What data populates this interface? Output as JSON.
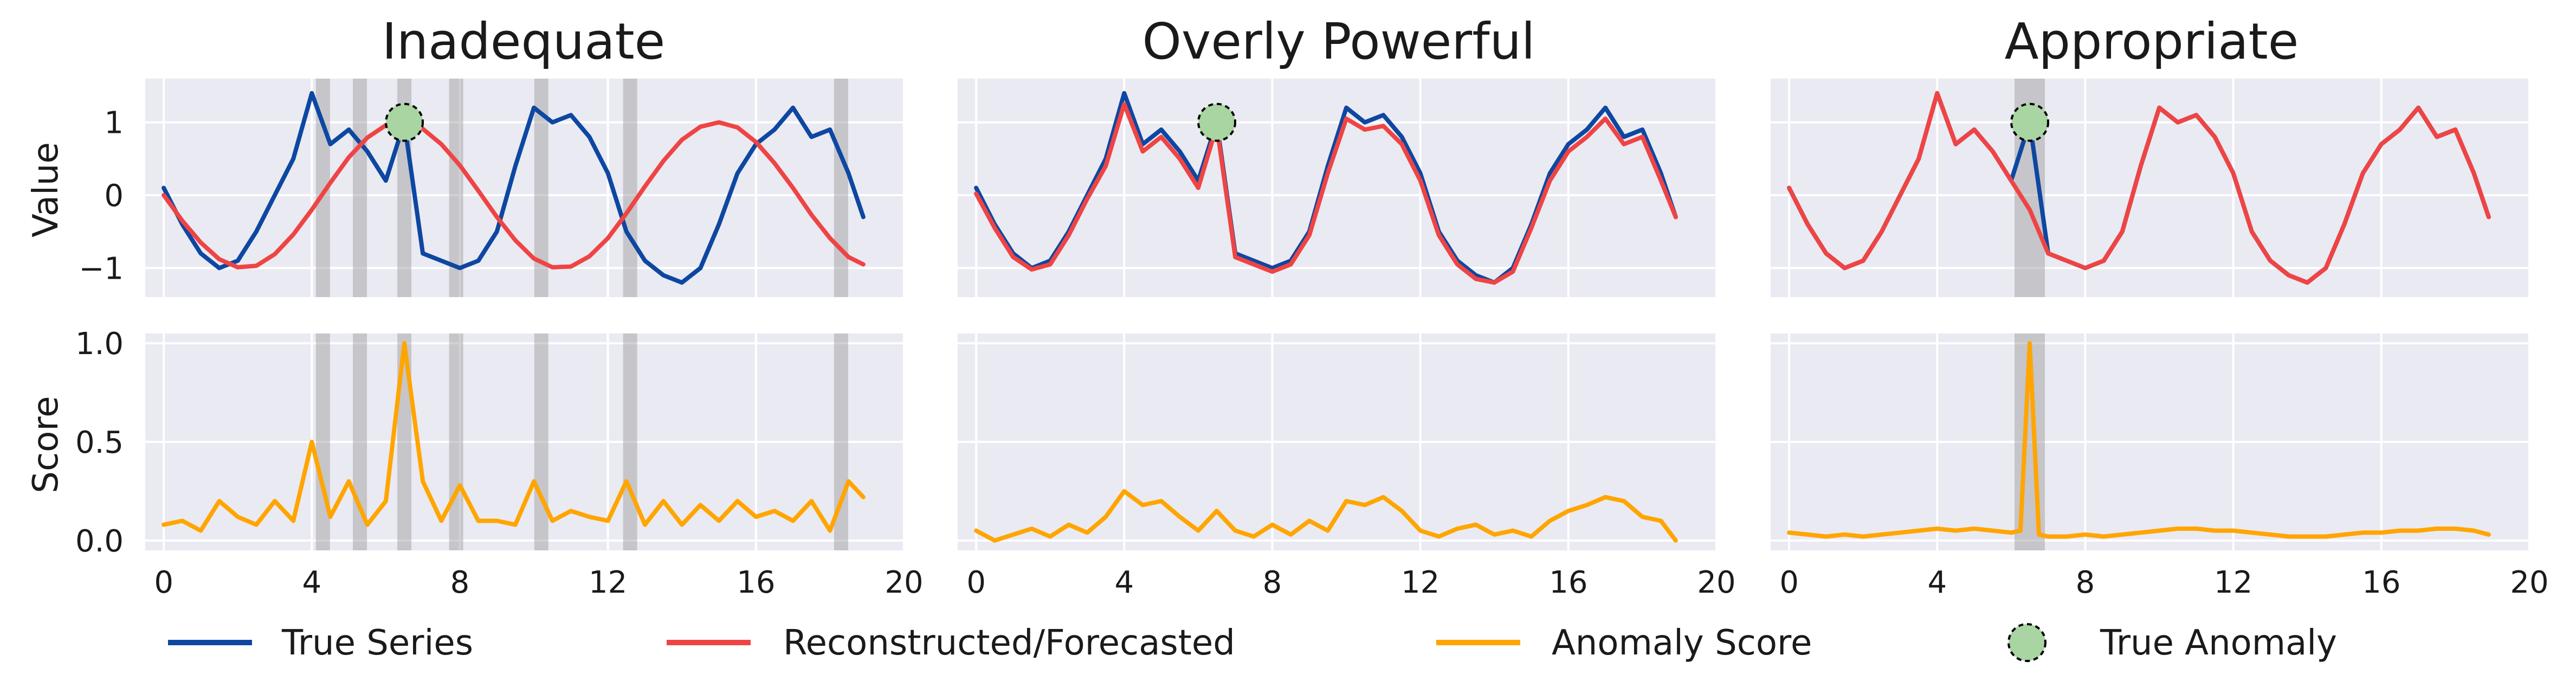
{
  "colors": {
    "true_series": "#0d47a1",
    "reconstructed": "#ef4444",
    "score": "#ffa500",
    "true_anomaly_fill": "#a8d5a2",
    "panel_bg": "#eaeaf2",
    "grid": "#ffffff",
    "window_shade": "#9a9a9a"
  },
  "legend": {
    "true_series": "True Series",
    "reconstructed": "Reconstructed/Forecasted",
    "score": "Anomaly Score",
    "true_anomaly": "True Anomaly"
  },
  "chart_data": [
    {
      "type": "line",
      "title": "Inadequate",
      "xlabel": "",
      "top": {
        "ylabel": "Value",
        "ylim": [
          -1.4,
          1.6
        ],
        "yticks": [
          -1,
          0,
          1
        ],
        "series": [
          {
            "name": "True Series",
            "x": [
              0.0,
              0.5,
              1.0,
              1.5,
              2.0,
              2.5,
              3.0,
              3.5,
              4.0,
              4.5,
              5.0,
              5.5,
              6.0,
              6.5,
              7.0,
              7.5,
              8.0,
              8.5,
              9.0,
              9.5,
              10.0,
              10.5,
              11.0,
              11.5,
              12.0,
              12.5,
              13.0,
              13.5,
              14.0,
              14.5,
              15.0,
              15.5,
              16.0,
              16.5,
              17.0,
              17.5,
              18.0,
              18.5,
              18.9
            ],
            "y": [
              0.1,
              -0.4,
              -0.8,
              -1.0,
              -0.9,
              -0.5,
              0.0,
              0.5,
              1.4,
              0.7,
              0.9,
              0.6,
              0.2,
              1.0,
              -0.8,
              -0.9,
              -1.0,
              -0.9,
              -0.5,
              0.4,
              1.2,
              1.0,
              1.1,
              0.8,
              0.3,
              -0.5,
              -0.9,
              -1.1,
              -1.2,
              -1.0,
              -0.4,
              0.3,
              0.7,
              0.9,
              1.2,
              0.8,
              0.9,
              0.3,
              -0.3
            ]
          },
          {
            "name": "Reconstructed/Forecasted",
            "x": [
              0.0,
              0.5,
              1.0,
              1.5,
              2.0,
              2.5,
              3.0,
              3.5,
              4.0,
              4.5,
              5.0,
              5.5,
              6.0,
              6.5,
              7.0,
              7.5,
              8.0,
              8.5,
              9.0,
              9.5,
              10.0,
              10.5,
              11.0,
              11.5,
              12.0,
              12.5,
              13.0,
              13.5,
              14.0,
              14.5,
              15.0,
              15.5,
              16.0,
              16.5,
              17.0,
              17.5,
              18.0,
              18.5,
              18.9
            ],
            "y": [
              0.0,
              -0.35,
              -0.65,
              -0.88,
              -0.99,
              -0.97,
              -0.81,
              -0.54,
              -0.2,
              0.17,
              0.52,
              0.79,
              0.96,
              1.0,
              0.91,
              0.7,
              0.41,
              0.06,
              -0.3,
              -0.62,
              -0.87,
              -0.99,
              -0.98,
              -0.84,
              -0.59,
              -0.25,
              0.12,
              0.47,
              0.76,
              0.94,
              1.0,
              0.93,
              0.73,
              0.44,
              0.1,
              -0.27,
              -0.59,
              -0.85,
              -0.95
            ]
          }
        ],
        "shade_x": [
          4.3,
          5.3,
          6.5,
          7.9,
          10.2,
          12.6,
          18.3
        ],
        "true_anomaly": {
          "x": 6.5,
          "y": 1.0
        }
      },
      "bottom": {
        "ylabel": "Score",
        "ylim": [
          -0.05,
          1.05
        ],
        "yticks": [
          0.0,
          0.5,
          1.0
        ],
        "series": [
          {
            "name": "Anomaly Score",
            "x": [
              0.0,
              0.5,
              1.0,
              1.5,
              2.0,
              2.5,
              3.0,
              3.5,
              4.0,
              4.5,
              5.0,
              5.5,
              6.0,
              6.5,
              7.0,
              7.5,
              8.0,
              8.5,
              9.0,
              9.5,
              10.0,
              10.5,
              11.0,
              11.5,
              12.0,
              12.5,
              13.0,
              13.5,
              14.0,
              14.5,
              15.0,
              15.5,
              16.0,
              16.5,
              17.0,
              17.5,
              18.0,
              18.5,
              18.9
            ],
            "y": [
              0.08,
              0.1,
              0.05,
              0.2,
              0.12,
              0.08,
              0.2,
              0.1,
              0.5,
              0.12,
              0.3,
              0.08,
              0.2,
              1.0,
              0.3,
              0.1,
              0.28,
              0.1,
              0.1,
              0.08,
              0.3,
              0.1,
              0.15,
              0.12,
              0.1,
              0.3,
              0.08,
              0.2,
              0.08,
              0.18,
              0.1,
              0.2,
              0.12,
              0.15,
              0.1,
              0.2,
              0.05,
              0.3,
              0.22
            ]
          }
        ],
        "shade_x": [
          4.3,
          5.3,
          6.5,
          7.9,
          10.2,
          12.6,
          18.3
        ]
      },
      "xlim": [
        -0.5,
        20
      ],
      "xticks": [
        0,
        4,
        8,
        12,
        16,
        20
      ]
    },
    {
      "type": "line",
      "title": "Overly Powerful",
      "xlabel": "",
      "top": {
        "ylabel": "",
        "ylim": [
          -1.4,
          1.6
        ],
        "yticks": [
          -1,
          0,
          1
        ],
        "series": [
          {
            "name": "True Series",
            "x": [
              0.0,
              0.5,
              1.0,
              1.5,
              2.0,
              2.5,
              3.0,
              3.5,
              4.0,
              4.5,
              5.0,
              5.5,
              6.0,
              6.5,
              7.0,
              7.5,
              8.0,
              8.5,
              9.0,
              9.5,
              10.0,
              10.5,
              11.0,
              11.5,
              12.0,
              12.5,
              13.0,
              13.5,
              14.0,
              14.5,
              15.0,
              15.5,
              16.0,
              16.5,
              17.0,
              17.5,
              18.0,
              18.5,
              18.9
            ],
            "y": [
              0.1,
              -0.4,
              -0.8,
              -1.0,
              -0.9,
              -0.5,
              0.0,
              0.5,
              1.4,
              0.7,
              0.9,
              0.6,
              0.2,
              1.0,
              -0.8,
              -0.9,
              -1.0,
              -0.9,
              -0.5,
              0.4,
              1.2,
              1.0,
              1.1,
              0.8,
              0.3,
              -0.5,
              -0.9,
              -1.1,
              -1.2,
              -1.0,
              -0.4,
              0.3,
              0.7,
              0.9,
              1.2,
              0.8,
              0.9,
              0.3,
              -0.3
            ]
          },
          {
            "name": "Reconstructed/Forecasted",
            "x": [
              0.0,
              0.5,
              1.0,
              1.5,
              2.0,
              2.5,
              3.0,
              3.5,
              4.0,
              4.5,
              5.0,
              5.5,
              6.0,
              6.5,
              7.0,
              7.5,
              8.0,
              8.5,
              9.0,
              9.5,
              10.0,
              10.5,
              11.0,
              11.5,
              12.0,
              12.5,
              13.0,
              13.5,
              14.0,
              14.5,
              15.0,
              15.5,
              16.0,
              16.5,
              17.0,
              17.5,
              18.0,
              18.5,
              18.9
            ],
            "y": [
              0.02,
              -0.45,
              -0.85,
              -1.02,
              -0.95,
              -0.55,
              -0.05,
              0.4,
              1.25,
              0.6,
              0.8,
              0.5,
              0.1,
              0.95,
              -0.85,
              -0.95,
              -1.05,
              -0.95,
              -0.55,
              0.3,
              1.05,
              0.9,
              0.95,
              0.7,
              0.2,
              -0.55,
              -0.95,
              -1.15,
              -1.2,
              -1.05,
              -0.45,
              0.2,
              0.6,
              0.8,
              1.05,
              0.7,
              0.8,
              0.2,
              -0.3
            ]
          }
        ],
        "shade_x": [],
        "true_anomaly": {
          "x": 6.5,
          "y": 1.0
        }
      },
      "bottom": {
        "ylabel": "",
        "ylim": [
          -0.05,
          1.05
        ],
        "yticks": [
          0.0,
          0.5,
          1.0
        ],
        "series": [
          {
            "name": "Anomaly Score",
            "x": [
              0.0,
              0.5,
              1.0,
              1.5,
              2.0,
              2.5,
              3.0,
              3.5,
              4.0,
              4.5,
              5.0,
              5.5,
              6.0,
              6.5,
              7.0,
              7.5,
              8.0,
              8.5,
              9.0,
              9.5,
              10.0,
              10.5,
              11.0,
              11.5,
              12.0,
              12.5,
              13.0,
              13.5,
              14.0,
              14.5,
              15.0,
              15.5,
              16.0,
              16.5,
              17.0,
              17.5,
              18.0,
              18.5,
              18.9
            ],
            "y": [
              0.05,
              0.0,
              0.03,
              0.06,
              0.02,
              0.08,
              0.04,
              0.12,
              0.25,
              0.18,
              0.2,
              0.12,
              0.05,
              0.15,
              0.05,
              0.02,
              0.08,
              0.03,
              0.1,
              0.05,
              0.2,
              0.18,
              0.22,
              0.15,
              0.05,
              0.02,
              0.06,
              0.08,
              0.03,
              0.05,
              0.02,
              0.1,
              0.15,
              0.18,
              0.22,
              0.2,
              0.12,
              0.1,
              0.0
            ]
          }
        ],
        "shade_x": []
      },
      "xlim": [
        -0.5,
        20
      ],
      "xticks": [
        0,
        4,
        8,
        12,
        16,
        20
      ]
    },
    {
      "type": "line",
      "title": "Appropriate",
      "xlabel": "",
      "top": {
        "ylabel": "",
        "ylim": [
          -1.4,
          1.6
        ],
        "yticks": [
          -1,
          0,
          1
        ],
        "series": [
          {
            "name": "True Series",
            "x": [
              0.0,
              0.5,
              1.0,
              1.5,
              2.0,
              2.5,
              3.0,
              3.5,
              4.0,
              4.5,
              5.0,
              5.5,
              6.0,
              6.5,
              7.0,
              7.5,
              8.0,
              8.5,
              9.0,
              9.5,
              10.0,
              10.5,
              11.0,
              11.5,
              12.0,
              12.5,
              13.0,
              13.5,
              14.0,
              14.5,
              15.0,
              15.5,
              16.0,
              16.5,
              17.0,
              17.5,
              18.0,
              18.5,
              18.9
            ],
            "y": [
              0.1,
              -0.4,
              -0.8,
              -1.0,
              -0.9,
              -0.5,
              0.0,
              0.5,
              1.4,
              0.7,
              0.9,
              0.6,
              0.2,
              1.0,
              -0.8,
              -0.9,
              -1.0,
              -0.9,
              -0.5,
              0.4,
              1.2,
              1.0,
              1.1,
              0.8,
              0.3,
              -0.5,
              -0.9,
              -1.1,
              -1.2,
              -1.0,
              -0.4,
              0.3,
              0.7,
              0.9,
              1.2,
              0.8,
              0.9,
              0.3,
              -0.3
            ]
          },
          {
            "name": "Reconstructed/Forecasted",
            "x": [
              0.0,
              0.5,
              1.0,
              1.5,
              2.0,
              2.5,
              3.0,
              3.5,
              4.0,
              4.5,
              5.0,
              5.5,
              6.0,
              6.5,
              7.0,
              7.5,
              8.0,
              8.5,
              9.0,
              9.5,
              10.0,
              10.5,
              11.0,
              11.5,
              12.0,
              12.5,
              13.0,
              13.5,
              14.0,
              14.5,
              15.0,
              15.5,
              16.0,
              16.5,
              17.0,
              17.5,
              18.0,
              18.5,
              18.9
            ],
            "y": [
              0.1,
              -0.4,
              -0.8,
              -1.0,
              -0.9,
              -0.5,
              0.0,
              0.5,
              1.4,
              0.7,
              0.9,
              0.6,
              0.2,
              -0.2,
              -0.8,
              -0.9,
              -1.0,
              -0.9,
              -0.5,
              0.4,
              1.2,
              1.0,
              1.1,
              0.8,
              0.3,
              -0.5,
              -0.9,
              -1.1,
              -1.2,
              -1.0,
              -0.4,
              0.3,
              0.7,
              0.9,
              1.2,
              0.8,
              0.9,
              0.3,
              -0.3
            ]
          }
        ],
        "shade_x": [
          6.5
        ],
        "true_anomaly": {
          "x": 6.5,
          "y": 1.0
        }
      },
      "bottom": {
        "ylabel": "",
        "ylim": [
          -0.05,
          1.05
        ],
        "yticks": [
          0.0,
          0.5,
          1.0
        ],
        "series": [
          {
            "name": "Anomaly Score",
            "x": [
              0.0,
              0.5,
              1.0,
              1.5,
              2.0,
              2.5,
              3.0,
              3.5,
              4.0,
              4.5,
              5.0,
              5.5,
              6.0,
              6.25,
              6.5,
              6.75,
              7.0,
              7.5,
              8.0,
              8.5,
              9.0,
              9.5,
              10.0,
              10.5,
              11.0,
              11.5,
              12.0,
              12.5,
              13.0,
              13.5,
              14.0,
              14.5,
              15.0,
              15.5,
              16.0,
              16.5,
              17.0,
              17.5,
              18.0,
              18.5,
              18.9
            ],
            "y": [
              0.04,
              0.03,
              0.02,
              0.03,
              0.02,
              0.03,
              0.04,
              0.05,
              0.06,
              0.05,
              0.06,
              0.05,
              0.04,
              0.05,
              1.0,
              0.03,
              0.02,
              0.02,
              0.03,
              0.02,
              0.03,
              0.04,
              0.05,
              0.06,
              0.06,
              0.05,
              0.05,
              0.04,
              0.03,
              0.02,
              0.02,
              0.02,
              0.03,
              0.04,
              0.04,
              0.05,
              0.05,
              0.06,
              0.06,
              0.05,
              0.03
            ]
          }
        ],
        "shade_x": [
          6.5
        ]
      },
      "xlim": [
        -0.5,
        20
      ],
      "xticks": [
        0,
        4,
        8,
        12,
        16,
        20
      ]
    }
  ]
}
